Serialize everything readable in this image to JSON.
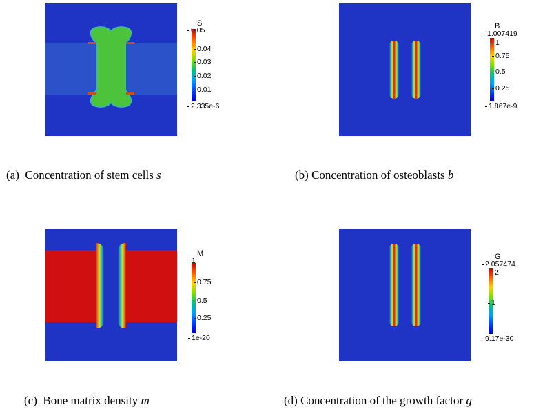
{
  "panels": [
    {
      "id": "a",
      "caption_prefix": "(a)",
      "caption_text": "Concentration of stem cells",
      "caption_var": "s",
      "colorbar": {
        "title": "S",
        "max": "0.05",
        "min": "2.335e-6",
        "ticks": [
          "0.04",
          "0.03",
          "0.02",
          "0.01"
        ]
      }
    },
    {
      "id": "b",
      "caption_prefix": "(b)",
      "caption_text": "Concentration of osteoblasts",
      "caption_var": "b",
      "colorbar": {
        "title": "B",
        "max": "1.007419",
        "min": "1.867e-9",
        "ticks": [
          "1",
          "0.75",
          "0.5",
          "0.25"
        ]
      }
    },
    {
      "id": "c",
      "caption_prefix": "(c)",
      "caption_text": "Bone matrix density",
      "caption_var": "m",
      "colorbar": {
        "title": "M",
        "max": "1",
        "min": "1e-20",
        "ticks": [
          "0.75",
          "0.5",
          "0.25"
        ]
      }
    },
    {
      "id": "d",
      "caption_prefix": "(d)",
      "caption_text": "Concentration of the growth factor",
      "caption_var": "g",
      "colorbar": {
        "title": "G",
        "max": "2.057474",
        "min": "9.17e-30",
        "ticks": [
          "2",
          "1"
        ]
      }
    }
  ],
  "colors": {
    "background_field": "#1e33c8",
    "band_a": "#2a4fc6",
    "high": "#d01010",
    "mid": "#3cc23c"
  }
}
